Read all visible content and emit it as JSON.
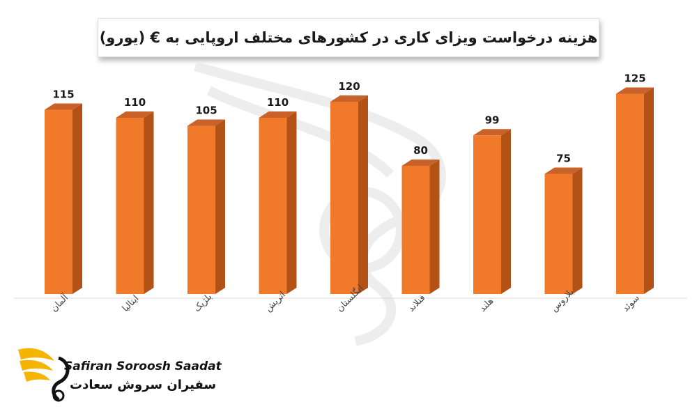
{
  "chart_data": {
    "type": "bar",
    "title": "هزینه درخواست ویزای کاری در کشورهای مختلف اروپایی به € (یورو)",
    "categories": [
      "آلمان",
      "ایتالیا",
      "بلژیک",
      "اتریش",
      "انگلستان",
      "فنلاند",
      "هلند",
      "بلاروس",
      "سوئد"
    ],
    "values": [
      115,
      110,
      105,
      110,
      120,
      80,
      99,
      75,
      125
    ],
    "ylim": [
      0,
      140
    ],
    "grid": false,
    "legend": "none",
    "bar_color": "#f07a2a",
    "bar_side_color": "#b35217",
    "bar_top_color": "#c8622a"
  },
  "logo": {
    "brand_en": "Safiran Soroosh Saadat",
    "brand_fa": "سفیران سروش سعادت",
    "accent_color": "#f4b400"
  }
}
